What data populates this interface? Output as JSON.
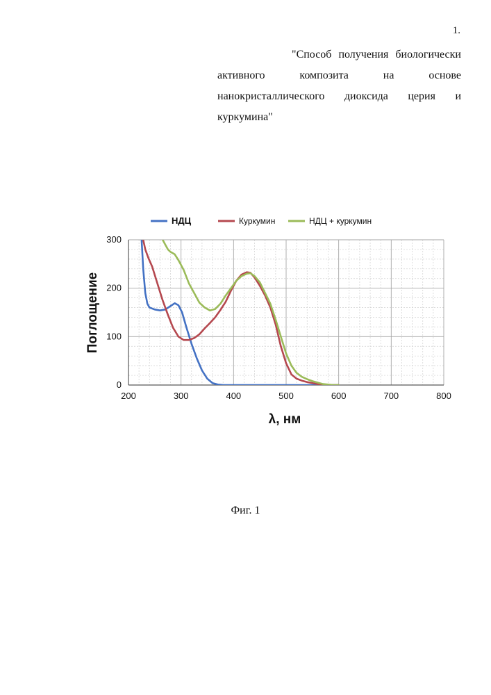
{
  "document": {
    "page_number": "1.",
    "title_lines": [
      [
        "\"Способ",
        "получения",
        "биологически"
      ],
      [
        "активного",
        "композита",
        "на",
        "основе"
      ],
      [
        "нанокристаллического",
        "диоксида",
        "церия",
        "и"
      ],
      [
        "куркумина\""
      ]
    ],
    "figure_caption": "Фиг. 1"
  },
  "chart_data": {
    "type": "line",
    "xlabel": "λ, нм",
    "ylabel": "Поглощение",
    "xlim": [
      200,
      800
    ],
    "ylim": [
      0,
      300
    ],
    "xticks": [
      200,
      300,
      400,
      500,
      600,
      700,
      800
    ],
    "yticks": [
      0,
      100,
      200,
      300
    ],
    "grid": true,
    "legend": "top",
    "series": [
      {
        "name": "НДЦ",
        "color": "#4472c4",
        "x": [
          225,
          228,
          232,
          236,
          240,
          250,
          260,
          270,
          280,
          288,
          295,
          302,
          310,
          320,
          330,
          340,
          350,
          360,
          370,
          380,
          400,
          450,
          500,
          550,
          600
        ],
        "y": [
          300,
          240,
          190,
          168,
          160,
          156,
          154,
          156,
          163,
          169,
          165,
          150,
          120,
          85,
          55,
          30,
          13,
          4,
          1,
          0,
          0,
          0,
          0,
          0,
          0
        ]
      },
      {
        "name": "Куркумин",
        "color": "#b5484f",
        "x": [
          228,
          232,
          238,
          245,
          255,
          265,
          275,
          285,
          295,
          305,
          315,
          325,
          335,
          345,
          355,
          365,
          375,
          385,
          395,
          405,
          415,
          425,
          432,
          440,
          450,
          460,
          470,
          480,
          490,
          500,
          510,
          520,
          530,
          540,
          550,
          560,
          570,
          580,
          590,
          600
        ],
        "y": [
          300,
          280,
          262,
          245,
          210,
          175,
          145,
          118,
          100,
          93,
          93,
          97,
          105,
          117,
          128,
          140,
          155,
          172,
          195,
          215,
          228,
          233,
          232,
          222,
          205,
          185,
          160,
          125,
          80,
          45,
          22,
          13,
          9,
          6,
          4,
          2,
          1,
          0,
          0,
          0
        ]
      },
      {
        "name": "НДЦ + куркумин",
        "color": "#9bbb59",
        "x": [
          265,
          270,
          275,
          280,
          288,
          295,
          305,
          315,
          325,
          335,
          345,
          355,
          365,
          375,
          385,
          395,
          405,
          415,
          425,
          432,
          440,
          450,
          460,
          470,
          480,
          490,
          500,
          510,
          520,
          530,
          540,
          550,
          560,
          570,
          580,
          590,
          600
        ],
        "y": [
          300,
          290,
          280,
          275,
          270,
          258,
          238,
          210,
          190,
          170,
          160,
          154,
          157,
          168,
          185,
          200,
          215,
          225,
          230,
          231,
          225,
          212,
          190,
          168,
          135,
          100,
          65,
          40,
          25,
          17,
          12,
          8,
          5,
          2,
          1,
          0,
          0
        ]
      }
    ]
  }
}
